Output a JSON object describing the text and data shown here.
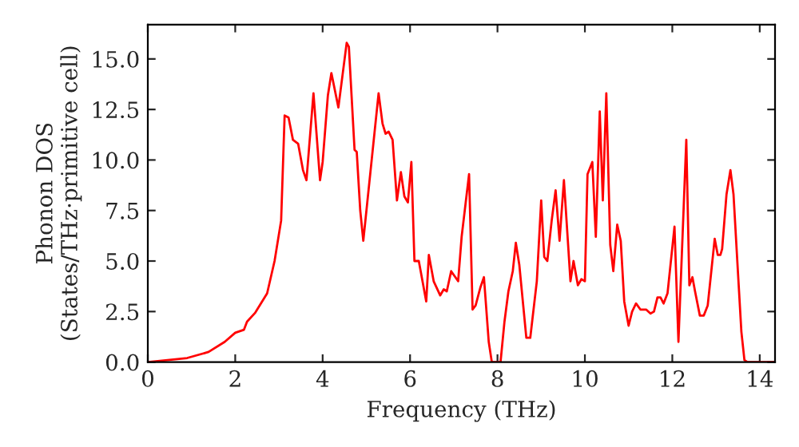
{
  "chart_data": {
    "type": "line",
    "xlabel": "Frequency (THz)",
    "ylabel": "Phonon DOS\n(States/THz·primitive cell)",
    "xlim": [
      0,
      14.35
    ],
    "ylim": [
      0,
      16.7
    ],
    "xticks": [
      0,
      2,
      4,
      6,
      8,
      10,
      12,
      14
    ],
    "yticks": [
      {
        "value": 0,
        "label": "0.0"
      },
      2.5,
      {
        "value": 5,
        "label": "5.0"
      },
      7.5,
      {
        "value": 10,
        "label": "10.0"
      },
      12.5,
      {
        "value": 15,
        "label": "15.0"
      }
    ],
    "grid": false,
    "series": [
      {
        "color": "#ff0000",
        "x": [
          0,
          0.9,
          1.39,
          1.76,
          2.0,
          2.2,
          2.27,
          2.46,
          2.73,
          2.9,
          3.05,
          3.13,
          3.22,
          3.32,
          3.44,
          3.55,
          3.63,
          3.79,
          3.94,
          4.0,
          4.12,
          4.2,
          4.36,
          4.55,
          4.6,
          4.73,
          4.78,
          4.86,
          4.93,
          5.28,
          5.37,
          5.44,
          5.51,
          5.6,
          5.7,
          5.79,
          5.87,
          5.95,
          6.03,
          6.1,
          6.2,
          6.37,
          6.43,
          6.54,
          6.69,
          6.77,
          6.84,
          6.94,
          7.1,
          7.18,
          7.35,
          7.43,
          7.5,
          7.61,
          7.69,
          7.8,
          7.87,
          8.07,
          8.16,
          8.25,
          8.35,
          8.42,
          8.5,
          8.58,
          8.66,
          8.75,
          8.9,
          9.0,
          9.07,
          9.14,
          9.24,
          9.33,
          9.42,
          9.52,
          9.67,
          9.74,
          9.84,
          9.92,
          10.0,
          10.06,
          10.17,
          10.25,
          10.34,
          10.41,
          10.49,
          10.58,
          10.65,
          10.74,
          10.82,
          10.9,
          11.0,
          11.08,
          11.17,
          11.27,
          11.4,
          11.5,
          11.58,
          11.66,
          11.73,
          11.8,
          11.89,
          12.05,
          12.14,
          12.32,
          12.39,
          12.46,
          12.52,
          12.63,
          12.72,
          12.81,
          12.97,
          13.04,
          13.1,
          13.14,
          13.24,
          13.33,
          13.4,
          13.5,
          13.58,
          13.65,
          13.72,
          14.35
        ],
        "values": [
          0,
          0.2,
          0.5,
          1.0,
          1.45,
          1.6,
          2.0,
          2.45,
          3.4,
          5.0,
          7.0,
          12.2,
          12.1,
          11.0,
          10.8,
          9.5,
          9.0,
          13.3,
          9.0,
          9.9,
          13.2,
          14.3,
          12.6,
          15.8,
          15.6,
          10.5,
          10.4,
          7.5,
          6.0,
          13.3,
          11.8,
          11.3,
          11.4,
          11.0,
          8.0,
          9.4,
          8.2,
          7.9,
          9.9,
          5.0,
          5.0,
          3.0,
          5.3,
          4.0,
          3.3,
          3.6,
          3.5,
          4.5,
          4.0,
          6.2,
          9.3,
          2.6,
          2.8,
          3.7,
          4.2,
          1.0,
          0,
          0,
          2.0,
          3.5,
          4.5,
          5.9,
          4.8,
          3.0,
          1.2,
          1.2,
          4.0,
          8.0,
          5.2,
          5.0,
          7.0,
          8.5,
          6.0,
          9.0,
          4.0,
          5.0,
          3.8,
          4.1,
          4.0,
          9.3,
          9.9,
          6.2,
          12.4,
          8.0,
          13.3,
          5.8,
          4.5,
          6.8,
          6.0,
          3.0,
          1.8,
          2.5,
          2.9,
          2.6,
          2.6,
          2.4,
          2.5,
          3.2,
          3.2,
          2.9,
          3.4,
          6.7,
          1.0,
          11.0,
          3.8,
          4.2,
          3.5,
          2.3,
          2.3,
          2.8,
          6.1,
          5.3,
          5.3,
          5.6,
          8.3,
          9.5,
          8.3,
          4.5,
          1.5,
          0.1,
          0,
          0
        ]
      }
    ]
  }
}
